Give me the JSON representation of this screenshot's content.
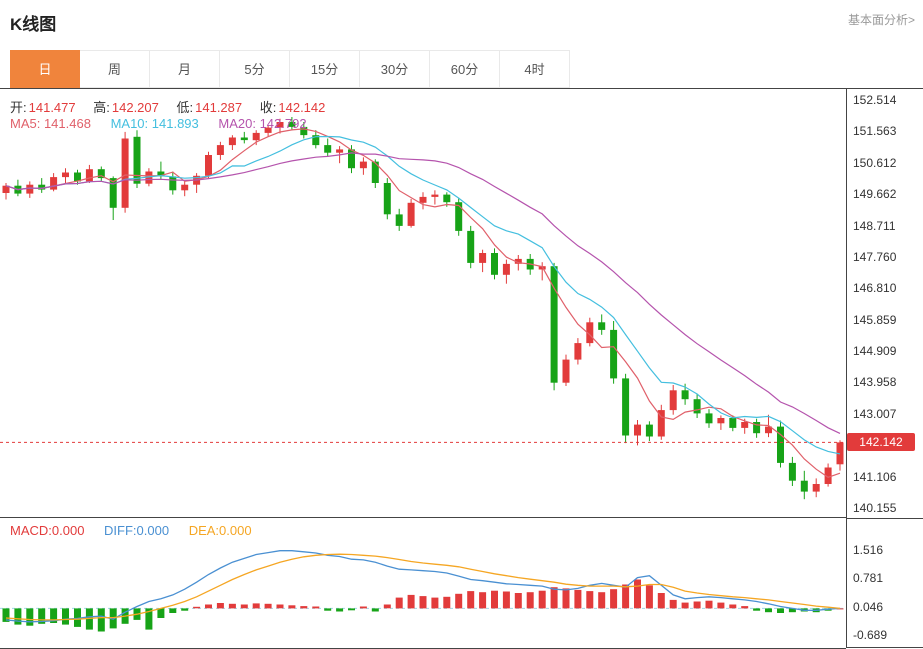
{
  "header": {
    "title": "K线图",
    "link": "基本面分析>"
  },
  "tabs": {
    "items": [
      {
        "label": "日",
        "active": true
      },
      {
        "label": "周",
        "active": false
      },
      {
        "label": "月",
        "active": false
      },
      {
        "label": "5分",
        "active": false
      },
      {
        "label": "15分",
        "active": false
      },
      {
        "label": "30分",
        "active": false
      },
      {
        "label": "60分",
        "active": false
      },
      {
        "label": "4时",
        "active": false
      }
    ]
  },
  "legend": {
    "open_label": "开:",
    "open_value": "141.477",
    "high_label": "高:",
    "high_value": "142.207",
    "low_label": "低:",
    "low_value": "141.287",
    "close_label": "收:",
    "close_value": "142.142",
    "ma5": "MA5: 141.468",
    "ma10": "MA10: 141.893",
    "ma20": "MA20: 142.792",
    "macd": "MACD:0.000",
    "diff": "DIFF:0.000",
    "dea": "DEA:0.000"
  },
  "colors": {
    "up": "#e23b3b",
    "down": "#17a317",
    "ma5": "#e0606a",
    "ma10": "#44bfdf",
    "ma20": "#b554ad",
    "diff": "#4a90d2",
    "dea": "#f5a623",
    "macd_text": "#e23b3b",
    "accent": "#f0843c",
    "zero_line": "#9fd8e8",
    "axis_text": "#333333"
  },
  "chart_data": {
    "type": "candlestick",
    "title": "K线图 (日K)",
    "legend_position": "top-left",
    "grid": false,
    "main": {
      "y_axis_labels": [
        "152.514",
        "151.563",
        "150.612",
        "149.662",
        "148.711",
        "147.760",
        "146.810",
        "145.859",
        "144.909",
        "143.958",
        "143.007",
        "141.106",
        "140.155"
      ],
      "current_price": 142.142,
      "current_price_label": "142.142",
      "price_min": 139.88,
      "price_max": 152.85,
      "ma_periods": [
        5,
        10,
        20
      ],
      "ohlc": {
        "open": 141.477,
        "high": 142.207,
        "low": 141.287,
        "close": 142.142
      },
      "candles": [
        [
          149.7,
          150.0,
          149.5,
          149.92
        ],
        [
          149.92,
          150.1,
          149.6,
          149.68
        ],
        [
          149.68,
          150.05,
          149.55,
          149.95
        ],
        [
          149.95,
          150.15,
          149.7,
          149.8
        ],
        [
          149.8,
          150.3,
          149.75,
          150.18
        ],
        [
          150.18,
          150.45,
          150.0,
          150.32
        ],
        [
          150.32,
          150.4,
          149.95,
          150.05
        ],
        [
          150.05,
          150.55,
          150.0,
          150.42
        ],
        [
          150.42,
          150.5,
          150.05,
          150.15
        ],
        [
          150.15,
          150.2,
          148.88,
          149.25
        ],
        [
          149.25,
          151.55,
          149.1,
          151.35
        ],
        [
          151.4,
          151.6,
          149.85,
          149.98
        ],
        [
          149.98,
          150.45,
          149.9,
          150.35
        ],
        [
          150.35,
          150.65,
          150.1,
          150.2
        ],
        [
          150.2,
          150.35,
          149.65,
          149.78
        ],
        [
          149.78,
          150.05,
          149.6,
          149.95
        ],
        [
          149.95,
          150.3,
          149.7,
          150.22
        ],
        [
          150.22,
          150.95,
          150.15,
          150.85
        ],
        [
          150.85,
          151.25,
          150.7,
          151.15
        ],
        [
          151.15,
          151.45,
          151.0,
          151.38
        ],
        [
          151.38,
          151.55,
          151.2,
          151.3
        ],
        [
          151.3,
          151.6,
          151.15,
          151.52
        ],
        [
          151.52,
          151.75,
          151.4,
          151.68
        ],
        [
          151.68,
          151.95,
          151.5,
          151.85
        ],
        [
          151.85,
          152.0,
          151.6,
          151.7
        ],
        [
          151.7,
          151.85,
          151.35,
          151.45
        ],
        [
          151.45,
          151.6,
          151.05,
          151.15
        ],
        [
          151.15,
          151.35,
          150.8,
          150.92
        ],
        [
          150.92,
          151.12,
          150.6,
          151.02
        ],
        [
          151.02,
          151.15,
          150.3,
          150.45
        ],
        [
          150.45,
          150.78,
          150.25,
          150.65
        ],
        [
          150.65,
          150.72,
          149.85,
          150.0
        ],
        [
          150.0,
          150.15,
          148.9,
          149.05
        ],
        [
          149.05,
          149.22,
          148.55,
          148.7
        ],
        [
          148.7,
          149.52,
          148.65,
          149.4
        ],
        [
          149.4,
          149.72,
          149.2,
          149.58
        ],
        [
          149.58,
          149.78,
          149.35,
          149.65
        ],
        [
          149.65,
          149.72,
          149.28,
          149.42
        ],
        [
          149.42,
          149.55,
          148.4,
          148.55
        ],
        [
          148.55,
          148.7,
          147.42,
          147.58
        ],
        [
          147.58,
          147.98,
          147.3,
          147.88
        ],
        [
          147.88,
          148.02,
          147.08,
          147.22
        ],
        [
          147.22,
          147.68,
          146.95,
          147.55
        ],
        [
          147.55,
          147.82,
          147.35,
          147.7
        ],
        [
          147.7,
          147.85,
          147.22,
          147.38
        ],
        [
          147.38,
          147.6,
          147.05,
          147.48
        ],
        [
          147.48,
          147.58,
          143.72,
          143.95
        ],
        [
          143.95,
          144.8,
          143.85,
          144.65
        ],
        [
          144.65,
          145.3,
          144.5,
          145.15
        ],
        [
          145.15,
          145.92,
          145.05,
          145.78
        ],
        [
          145.78,
          146.02,
          145.4,
          145.55
        ],
        [
          145.55,
          145.82,
          143.92,
          144.08
        ],
        [
          144.08,
          144.22,
          142.12,
          142.35
        ],
        [
          142.35,
          142.82,
          142.05,
          142.68
        ],
        [
          142.68,
          142.78,
          142.18,
          142.32
        ],
        [
          142.32,
          143.28,
          142.22,
          143.12
        ],
        [
          143.12,
          143.88,
          142.98,
          143.72
        ],
        [
          143.72,
          143.92,
          143.28,
          143.45
        ],
        [
          143.45,
          143.62,
          142.88,
          143.02
        ],
        [
          143.02,
          143.15,
          142.58,
          142.72
        ],
        [
          142.72,
          142.96,
          142.52,
          142.88
        ],
        [
          142.88,
          142.96,
          142.48,
          142.58
        ],
        [
          142.58,
          142.86,
          142.4,
          142.76
        ],
        [
          142.76,
          142.86,
          142.28,
          142.42
        ],
        [
          142.42,
          142.98,
          142.3,
          142.62
        ],
        [
          142.62,
          142.8,
          141.38,
          141.52
        ],
        [
          141.52,
          141.7,
          140.82,
          140.98
        ],
        [
          140.98,
          141.28,
          140.42,
          140.65
        ],
        [
          140.65,
          141.05,
          140.48,
          140.88
        ],
        [
          140.88,
          141.5,
          140.8,
          141.38
        ],
        [
          141.477,
          142.207,
          141.287,
          142.142
        ]
      ]
    },
    "macd": {
      "y_axis_labels": [
        "1.516",
        "0.781",
        "0.046",
        "-0.689"
      ],
      "value_min": -1.03,
      "value_max": 2.35,
      "current": {
        "macd": 0.0,
        "diff": 0.0,
        "dea": 0.0
      },
      "hist": [
        -0.35,
        -0.42,
        -0.45,
        -0.4,
        -0.38,
        -0.42,
        -0.48,
        -0.55,
        -0.6,
        -0.52,
        -0.4,
        -0.3,
        -0.55,
        -0.25,
        -0.12,
        -0.06,
        0.04,
        0.1,
        0.14,
        0.12,
        0.1,
        0.13,
        0.12,
        0.1,
        0.08,
        0.06,
        0.05,
        -0.06,
        -0.08,
        -0.05,
        0.05,
        -0.08,
        0.1,
        0.28,
        0.35,
        0.32,
        0.28,
        0.3,
        0.38,
        0.45,
        0.42,
        0.46,
        0.44,
        0.4,
        0.42,
        0.46,
        0.55,
        0.52,
        0.48,
        0.45,
        0.42,
        0.5,
        0.62,
        0.75,
        0.6,
        0.4,
        0.22,
        0.15,
        0.18,
        0.2,
        0.15,
        0.1,
        0.06,
        -0.06,
        -0.1,
        -0.12,
        -0.1,
        -0.08,
        -0.1,
        -0.06,
        0.0
      ],
      "diff": [
        -0.3,
        -0.33,
        -0.35,
        -0.34,
        -0.32,
        -0.28,
        -0.26,
        -0.22,
        -0.2,
        -0.28,
        -0.1,
        0.05,
        0.18,
        0.25,
        0.35,
        0.5,
        0.68,
        0.88,
        1.05,
        1.2,
        1.3,
        1.4,
        1.45,
        1.5,
        1.5,
        1.47,
        1.44,
        1.38,
        1.35,
        1.28,
        1.26,
        1.2,
        1.1,
        1.02,
        1.0,
        0.98,
        0.96,
        0.92,
        0.84,
        0.75,
        0.72,
        0.68,
        0.64,
        0.62,
        0.6,
        0.58,
        0.5,
        0.48,
        0.52,
        0.6,
        0.65,
        0.6,
        0.55,
        0.8,
        0.85,
        0.6,
        0.35,
        0.25,
        0.28,
        0.3,
        0.28,
        0.25,
        0.22,
        0.18,
        0.12,
        0.05,
        0.0,
        -0.05,
        -0.05,
        -0.02,
        0.0
      ],
      "dea": [
        -0.25,
        -0.27,
        -0.29,
        -0.3,
        -0.3,
        -0.29,
        -0.28,
        -0.26,
        -0.24,
        -0.24,
        -0.2,
        -0.15,
        -0.08,
        0.0,
        0.08,
        0.18,
        0.3,
        0.45,
        0.6,
        0.75,
        0.88,
        1.0,
        1.1,
        1.2,
        1.28,
        1.34,
        1.38,
        1.4,
        1.41,
        1.4,
        1.38,
        1.36,
        1.32,
        1.27,
        1.22,
        1.18,
        1.15,
        1.12,
        1.08,
        1.02,
        0.96,
        0.9,
        0.85,
        0.8,
        0.76,
        0.72,
        0.68,
        0.63,
        0.6,
        0.58,
        0.58,
        0.58,
        0.56,
        0.58,
        0.62,
        0.62,
        0.55,
        0.45,
        0.4,
        0.36,
        0.33,
        0.3,
        0.28,
        0.25,
        0.22,
        0.18,
        0.14,
        0.1,
        0.06,
        0.03,
        0.0
      ]
    }
  }
}
